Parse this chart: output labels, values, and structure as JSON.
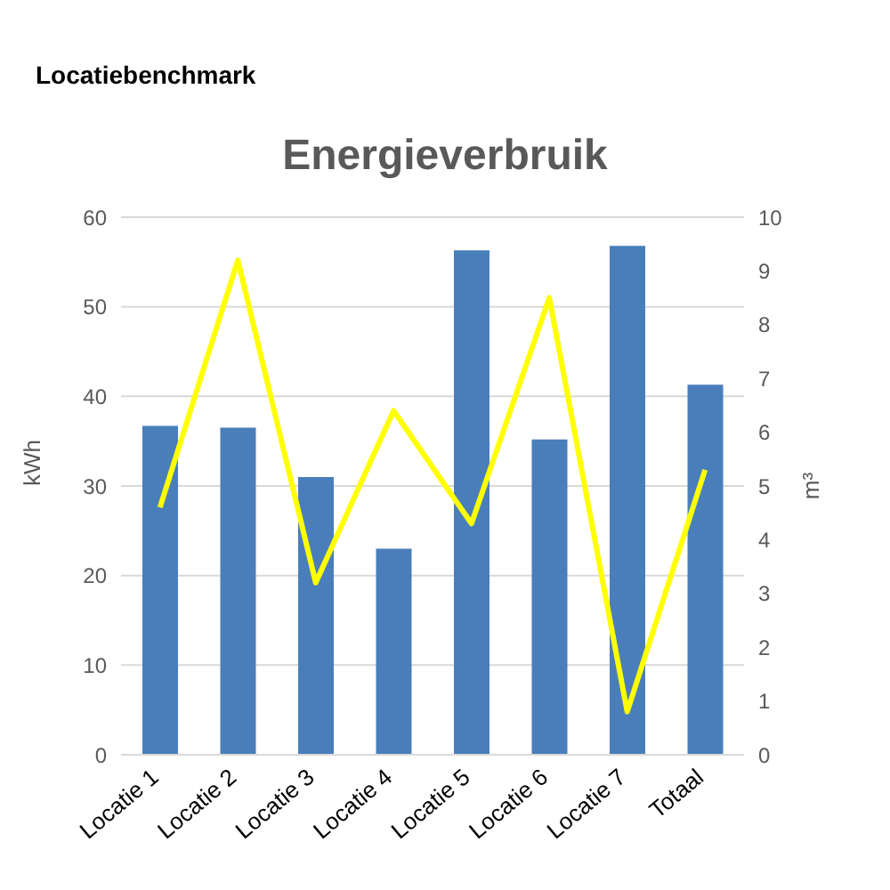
{
  "chart_data": {
    "type": "bar",
    "title": "Locatiebenchmark",
    "subtitle": "Energieverbruik",
    "ylabel": "kWh",
    "y2label": "m³",
    "categories": [
      "Locatie 1",
      "Locatie 2",
      "Locatie 3",
      "Locatie 4",
      "Locatie 5",
      "Locatie 6",
      "Locatie 7",
      "Totaal"
    ],
    "series": [
      {
        "color": "#4a7ebb",
        "values": [
          36.7,
          36.5,
          31,
          23,
          56.3,
          35.2,
          56.8,
          41.3
        ]
      },
      {
        "type": "line",
        "axis": "y2",
        "color": "#ffff00",
        "values": [
          4.6,
          9.2,
          3.2,
          6.4,
          4.3,
          8.5,
          0.8,
          5.3
        ]
      }
    ],
    "ylim": [
      0,
      60
    ],
    "yticks": [
      0,
      10,
      20,
      30,
      40,
      50,
      60
    ],
    "y2lim": [
      0,
      10
    ],
    "y2ticks": [
      0,
      1,
      2,
      3,
      4,
      5,
      6,
      7,
      8,
      9,
      10
    ],
    "grid": "y",
    "legend": false,
    "marker": "none"
  }
}
